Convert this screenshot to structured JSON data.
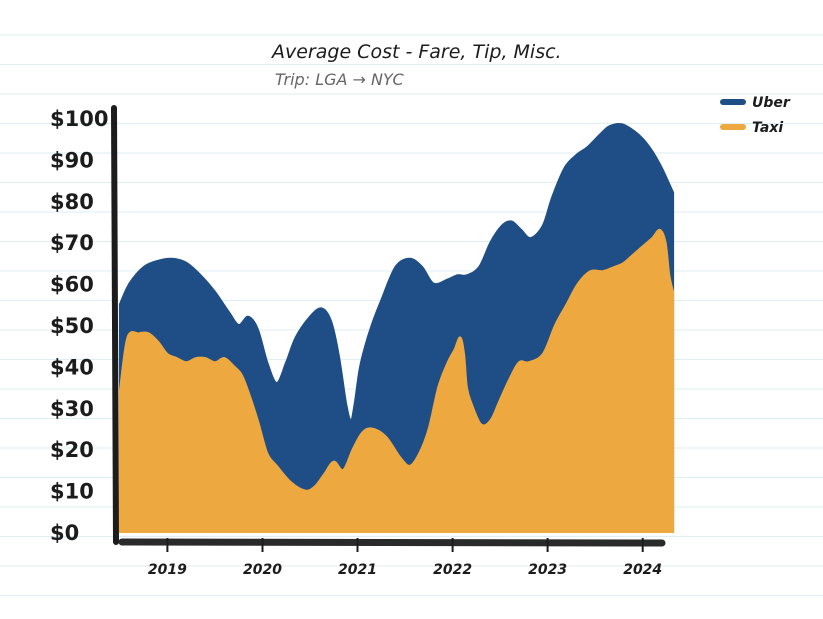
{
  "chart_data": {
    "type": "area",
    "title": "Average Cost - Fare, Tip, Misc.",
    "subtitle": "Trip: LGA → NYC",
    "xlabel": "",
    "ylabel": "",
    "y_ticks": [
      "$0",
      "$10",
      "$20",
      "$30",
      "$40",
      "$50",
      "$60",
      "$70",
      "$80",
      "$90",
      "$100"
    ],
    "ylim": [
      0,
      100
    ],
    "x_ticks": [
      {
        "label": "2019",
        "x": 2019
      },
      {
        "label": "2020",
        "x": 2020
      },
      {
        "label": "2021",
        "x": 2021
      },
      {
        "label": "2022",
        "x": 2022
      },
      {
        "label": "2023",
        "x": 2023
      },
      {
        "label": "2024",
        "x": 2024
      }
    ],
    "xlim": [
      2018.48,
      2024.34
    ],
    "grid": false,
    "legend_position": "top-right",
    "series": [
      {
        "name": "Uber",
        "color": "#1f4e86",
        "x": [
          2018.5,
          2018.6,
          2018.75,
          2018.9,
          2019.05,
          2019.2,
          2019.35,
          2019.5,
          2019.65,
          2019.75,
          2019.85,
          2019.95,
          2020.05,
          2020.15,
          2020.25,
          2020.35,
          2020.5,
          2020.62,
          2020.72,
          2020.8,
          2020.88,
          2020.93,
          2020.97,
          2021.02,
          2021.07,
          2021.15,
          2021.25,
          2021.4,
          2021.55,
          2021.68,
          2021.8,
          2021.95,
          2022.05,
          2022.15,
          2022.28,
          2022.4,
          2022.52,
          2022.62,
          2022.72,
          2022.82,
          2022.95,
          2023.05,
          2023.18,
          2023.3,
          2023.42,
          2023.55,
          2023.65,
          2023.78,
          2023.9,
          2024.0,
          2024.1,
          2024.2,
          2024.28,
          2024.32
        ],
        "values": [
          55,
          60,
          64,
          65.5,
          66,
          65,
          62,
          58,
          53,
          50,
          52,
          49,
          41,
          36,
          41,
          47,
          52,
          54,
          51,
          43,
          31,
          27,
          31,
          39,
          44,
          50,
          56,
          64,
          66,
          64,
          60,
          61,
          62,
          62,
          64,
          70,
          74,
          75,
          73,
          71,
          74,
          81,
          88,
          91,
          93,
          96,
          98,
          98.5,
          97,
          95,
          92,
          88,
          84,
          82
        ]
      },
      {
        "name": "Taxi",
        "color": "#eda93f",
        "x": [
          2018.5,
          2018.58,
          2018.7,
          2018.8,
          2018.9,
          2019.0,
          2019.1,
          2019.2,
          2019.3,
          2019.4,
          2019.5,
          2019.6,
          2019.7,
          2019.78,
          2019.85,
          2019.95,
          2020.05,
          2020.15,
          2020.3,
          2020.45,
          2020.55,
          2020.65,
          2020.75,
          2020.85,
          2020.95,
          2021.05,
          2021.15,
          2021.3,
          2021.45,
          2021.55,
          2021.65,
          2021.75,
          2021.85,
          2021.95,
          2022.02,
          2022.08,
          2022.12,
          2022.15,
          2022.2,
          2022.3,
          2022.4,
          2022.5,
          2022.6,
          2022.7,
          2022.8,
          2022.95,
          2023.08,
          2023.2,
          2023.32,
          2023.45,
          2023.58,
          2023.7,
          2023.8,
          2023.9,
          2024.0,
          2024.1,
          2024.18,
          2024.24,
          2024.28,
          2024.32
        ],
        "values": [
          34,
          47,
          48,
          48,
          46,
          43,
          42,
          41,
          42,
          42,
          41,
          42,
          40,
          38,
          34,
          27,
          19,
          16,
          12,
          10,
          11,
          14,
          17,
          15,
          20,
          24,
          25,
          23,
          18,
          16,
          19,
          25,
          35,
          41,
          44,
          47,
          43,
          35,
          31,
          26,
          27,
          32,
          37,
          41,
          41,
          43,
          50,
          55,
          60,
          63,
          63,
          64,
          65,
          67,
          69,
          71,
          73,
          70,
          62,
          58
        ]
      }
    ]
  }
}
